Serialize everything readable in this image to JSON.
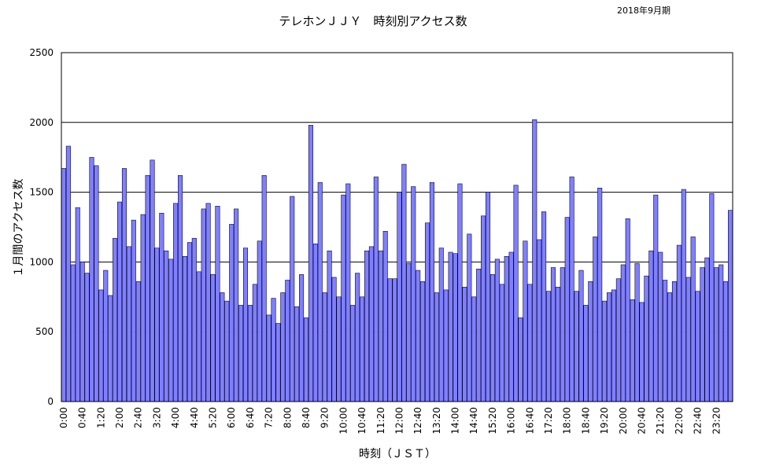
{
  "chart_data": {
    "type": "bar",
    "title": "テレホンＪＪＹ　時刻別アクセス数",
    "period": "2018年9月期",
    "xlabel": "時刻（ＪＳＴ）",
    "ylabel": "１月間のアクセス数",
    "ylim": [
      0,
      2500
    ],
    "yticks": [
      0,
      500,
      1000,
      1500,
      2000,
      2500
    ],
    "grid": true,
    "bar_color": "#8080ff",
    "interval_minutes": 10,
    "start_time": "0:00",
    "tick_labels": [
      "0:00",
      "0:40",
      "1:20",
      "2:00",
      "2:40",
      "3:20",
      "4:00",
      "4:40",
      "5:20",
      "6:00",
      "6:40",
      "7:20",
      "8:00",
      "8:40",
      "9:20",
      "10:00",
      "10:40",
      "11:20",
      "12:00",
      "12:40",
      "13:20",
      "14:00",
      "14:40",
      "15:20",
      "16:00",
      "16:40",
      "17:20",
      "18:00",
      "18:40",
      "19:20",
      "20:00",
      "20:40",
      "21:20",
      "22:00",
      "22:40",
      "23:20"
    ],
    "values": [
      1670,
      1830,
      980,
      1390,
      1000,
      920,
      1750,
      1690,
      800,
      940,
      760,
      1170,
      1430,
      1670,
      1110,
      1300,
      860,
      1340,
      1620,
      1730,
      1100,
      1350,
      1080,
      1020,
      1420,
      1620,
      1040,
      1140,
      1170,
      930,
      1380,
      1420,
      910,
      1400,
      780,
      720,
      1270,
      1380,
      690,
      1100,
      690,
      840,
      1150,
      1620,
      620,
      740,
      560,
      780,
      870,
      1470,
      680,
      910,
      600,
      1980,
      1130,
      1570,
      780,
      1080,
      890,
      750,
      1480,
      1560,
      690,
      920,
      750,
      1080,
      1110,
      1610,
      1080,
      1220,
      880,
      880,
      1500,
      1700,
      990,
      1540,
      940,
      860,
      1280,
      1570,
      780,
      1100,
      800,
      1070,
      1060,
      1560,
      820,
      1200,
      750,
      950,
      1330,
      1500,
      910,
      1020,
      840,
      1040,
      1070,
      1550,
      600,
      1150,
      840,
      2020,
      1160,
      1360,
      790,
      960,
      820,
      960,
      1320,
      1610,
      790,
      940,
      690,
      860,
      1180,
      1530,
      720,
      780,
      800,
      880,
      980,
      1310,
      730,
      990,
      710,
      900,
      1080,
      1480,
      1070,
      870,
      780,
      860,
      1120,
      1520,
      890,
      1180,
      790,
      960,
      1030,
      1490,
      960,
      980,
      860,
      1370
    ]
  }
}
